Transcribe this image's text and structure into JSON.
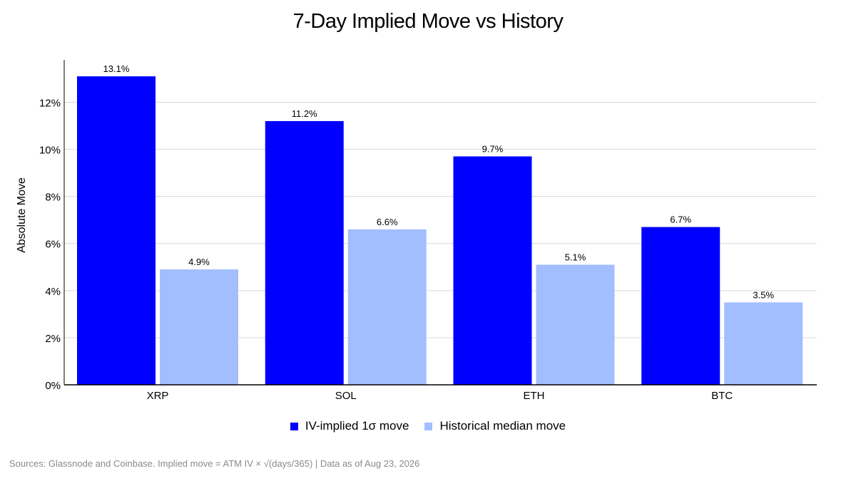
{
  "title": "7-Day Implied Move vs History",
  "source": "Sources: Glassnode and Coinbase. Implied move = ATM IV × √(days/365) | Data as of Aug 23, 2026",
  "colors": {
    "implied": "#0000ff",
    "historical": "#a2beff",
    "grid": "#d9d9d9",
    "axis": "#000000"
  },
  "chart_data": {
    "type": "bar",
    "categories": [
      "XRP",
      "SOL",
      "ETH",
      "BTC"
    ],
    "series": [
      {
        "name": "IV-implied 1σ move",
        "values": [
          13.1,
          11.2,
          9.7,
          6.7
        ],
        "labels": [
          "13.1%",
          "11.2%",
          "9.7%",
          "6.7%"
        ]
      },
      {
        "name": "Historical median move",
        "values": [
          4.9,
          6.6,
          5.1,
          3.5
        ],
        "labels": [
          "4.9%",
          "6.6%",
          "5.1%",
          "3.5%"
        ]
      }
    ],
    "title": "7-Day Implied Move vs History",
    "xlabel": "",
    "ylabel": "Absolute Move",
    "ylim": [
      0,
      13.8
    ],
    "yticks": [
      0,
      2,
      4,
      6,
      8,
      10,
      12
    ],
    "ytick_labels": [
      "0%",
      "2%",
      "4%",
      "6%",
      "8%",
      "10%",
      "12%"
    ],
    "grid": "horizontal",
    "legend": "bottom-center"
  }
}
